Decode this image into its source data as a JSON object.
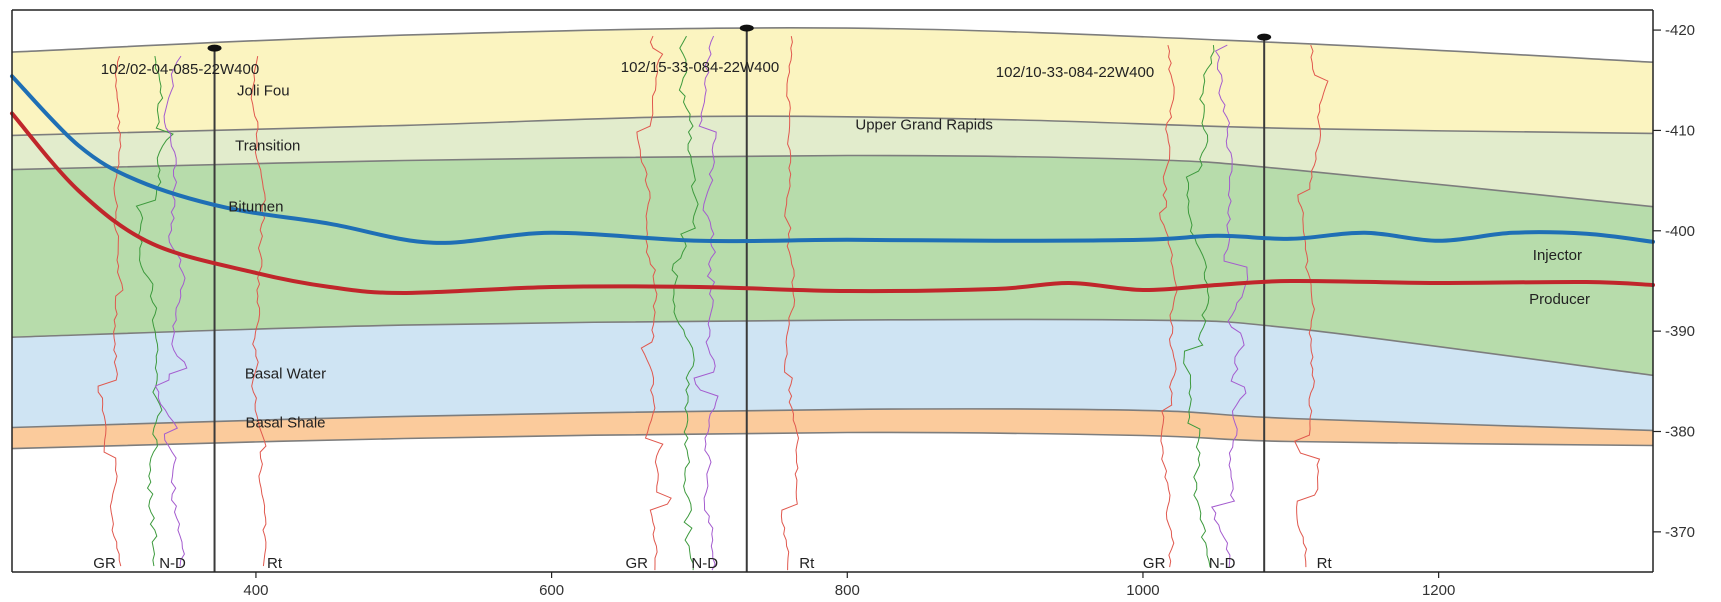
{
  "chart_data": {
    "type": "line",
    "title": "",
    "xlabel": "",
    "ylabel": "",
    "x_ticks": [
      400,
      600,
      800,
      1000,
      1200
    ],
    "y_ticks": [
      -420,
      -410,
      -400,
      -390,
      -380,
      -370
    ],
    "xlim": [
      235,
      1345
    ],
    "ylim": [
      -366,
      -422
    ],
    "grid": false,
    "layers": [
      {
        "name": "Joli Fou",
        "color": "#fbf4c0",
        "top": [
          [
            235,
            -417.8
          ],
          [
            500,
            -419.5
          ],
          [
            800,
            -420.2
          ],
          [
            1100,
            -418.7
          ],
          [
            1345,
            -416.8
          ]
        ],
        "bottom": [
          [
            235,
            -409.5
          ],
          [
            500,
            -410.5
          ],
          [
            700,
            -411.4
          ],
          [
            900,
            -411.1
          ],
          [
            1100,
            -410.2
          ],
          [
            1345,
            -409.7
          ]
        ]
      },
      {
        "name": "Transition",
        "color": "#e2eccc",
        "top": [
          [
            235,
            -409.5
          ],
          [
            500,
            -410.5
          ],
          [
            700,
            -411.4
          ],
          [
            900,
            -411.1
          ],
          [
            1100,
            -410.2
          ],
          [
            1345,
            -409.7
          ]
        ],
        "bottom": [
          [
            235,
            -406.1
          ],
          [
            500,
            -407.0
          ],
          [
            800,
            -407.5
          ],
          [
            1000,
            -407.1
          ],
          [
            1100,
            -406.1
          ],
          [
            1345,
            -402.4
          ]
        ]
      },
      {
        "name": "Bitumen",
        "color": "#b7dcab",
        "top": [
          [
            235,
            -406.1
          ],
          [
            500,
            -407.0
          ],
          [
            800,
            -407.5
          ],
          [
            1000,
            -407.1
          ],
          [
            1100,
            -406.1
          ],
          [
            1345,
            -402.4
          ]
        ],
        "bottom": [
          [
            235,
            -389.4
          ],
          [
            500,
            -390.6
          ],
          [
            800,
            -391.1
          ],
          [
            1000,
            -391.1
          ],
          [
            1100,
            -390.3
          ],
          [
            1345,
            -385.6
          ]
        ]
      },
      {
        "name": "Basal Water",
        "color": "#cfe4f3",
        "top": [
          [
            235,
            -389.4
          ],
          [
            500,
            -390.6
          ],
          [
            800,
            -391.1
          ],
          [
            1000,
            -391.1
          ],
          [
            1100,
            -390.3
          ],
          [
            1345,
            -385.6
          ]
        ],
        "bottom": [
          [
            235,
            -380.4
          ],
          [
            500,
            -381.5
          ],
          [
            800,
            -382.2
          ],
          [
            1000,
            -382.1
          ],
          [
            1100,
            -381.3
          ],
          [
            1345,
            -380.1
          ]
        ]
      },
      {
        "name": "Basal Shale",
        "color": "#fbcb9c",
        "top": [
          [
            235,
            -380.4
          ],
          [
            500,
            -381.5
          ],
          [
            800,
            -382.2
          ],
          [
            1000,
            -382.1
          ],
          [
            1100,
            -381.3
          ],
          [
            1345,
            -380.1
          ]
        ],
        "bottom": [
          [
            235,
            -378.3
          ],
          [
            500,
            -379.3
          ],
          [
            800,
            -379.9
          ],
          [
            1000,
            -379.6
          ],
          [
            1100,
            -379.0
          ],
          [
            1345,
            -378.6
          ]
        ]
      }
    ],
    "zone_labels": [
      {
        "text": "Joli Fou",
        "x": 405,
        "y": -414
      },
      {
        "text": "Transition",
        "x": 408,
        "y": -408.5
      },
      {
        "text": "Upper Grand Rapids",
        "x": 852,
        "y": -410.6
      },
      {
        "text": "Bitumen",
        "x": 400,
        "y": -402.4
      },
      {
        "text": "Basal Water",
        "x": 420,
        "y": -385.8
      },
      {
        "text": "Basal Shale",
        "x": 420,
        "y": -380.9
      }
    ],
    "series": [
      {
        "name": "Injector",
        "color": "#1f6fb5",
        "x": [
          235,
          280,
          320,
          380,
          450,
          520,
          600,
          700,
          800,
          900,
          1000,
          1050,
          1100,
          1150,
          1200,
          1250,
          1300,
          1345
        ],
        "y": [
          -415.4,
          -408.5,
          -405.0,
          -402.3,
          -400.7,
          -398.8,
          -399.8,
          -399.0,
          -399.1,
          -399.0,
          -399.1,
          -399.5,
          -399.2,
          -399.8,
          -399.0,
          -399.8,
          -399.7,
          -398.9
        ]
      },
      {
        "name": "Producer",
        "color": "#c0262b",
        "x": [
          235,
          280,
          330,
          400,
          450,
          500,
          600,
          700,
          800,
          900,
          950,
          1000,
          1050,
          1100,
          1200,
          1300,
          1345
        ],
        "y": [
          -411.7,
          -404.0,
          -398.7,
          -395.8,
          -394.4,
          -393.8,
          -394.4,
          -394.4,
          -394.0,
          -394.2,
          -394.8,
          -394.1,
          -394.6,
          -395.0,
          -394.8,
          -394.9,
          -394.6
        ]
      }
    ],
    "wells": [
      {
        "name": "102/02-04-085-22W400",
        "x": 372,
        "top_y": -418.2,
        "logs": [
          "GR",
          "N-D",
          "Rt"
        ]
      },
      {
        "name": "102/15-33-084-22W400",
        "x": 732,
        "top_y": -420.2,
        "logs": [
          "GR",
          "N-D",
          "Rt"
        ]
      },
      {
        "name": "102/10-33-084-22W400",
        "x": 1082,
        "top_y": -419.3,
        "logs": [
          "GR",
          "N-D",
          "Rt"
        ]
      }
    ]
  }
}
